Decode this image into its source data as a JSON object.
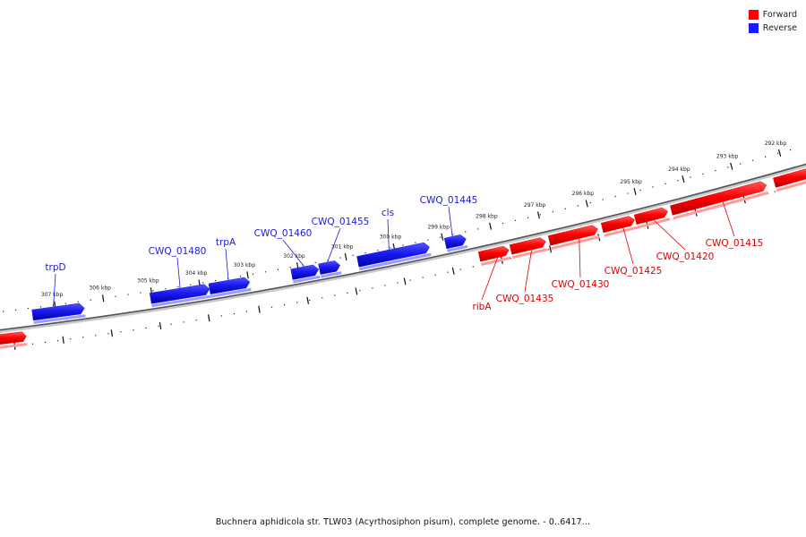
{
  "legend": {
    "forward_label": "Forward",
    "reverse_label": "Reverse",
    "forward_color": "#ff0000",
    "reverse_color": "#1a1aff"
  },
  "caption": "Buchnera aphidicola str. TLW03 (Acyrthosiphon pisum), complete genome. - 0..6417...",
  "ticks": [
    "307 kbp",
    "306 kbp",
    "305 kbp",
    "304 kbp",
    "303 kbp",
    "302 kbp",
    "301 kbp",
    "300 kbp",
    "299 kbp",
    "298 kbp",
    "297 kbp",
    "296 kbp",
    "295 kbp",
    "294 kbp",
    "293 kbp",
    "292 kbp"
  ],
  "genes": [
    {
      "label": "trpD",
      "strand": "reverse"
    },
    {
      "label": "CWQ_01480",
      "strand": "reverse"
    },
    {
      "label": "trpA",
      "strand": "reverse"
    },
    {
      "label": "CWQ_01460",
      "strand": "reverse"
    },
    {
      "label": "CWQ_01455",
      "strand": "reverse"
    },
    {
      "label": "cls",
      "strand": "reverse"
    },
    {
      "label": "CWQ_01445",
      "strand": "reverse"
    },
    {
      "label": "ribA",
      "strand": "forward"
    },
    {
      "label": "CWQ_01435",
      "strand": "forward"
    },
    {
      "label": "CWQ_01430",
      "strand": "forward"
    },
    {
      "label": "CWQ_01425",
      "strand": "forward"
    },
    {
      "label": "CWQ_01420",
      "strand": "forward"
    },
    {
      "label": "CWQ_01415",
      "strand": "forward"
    }
  ]
}
